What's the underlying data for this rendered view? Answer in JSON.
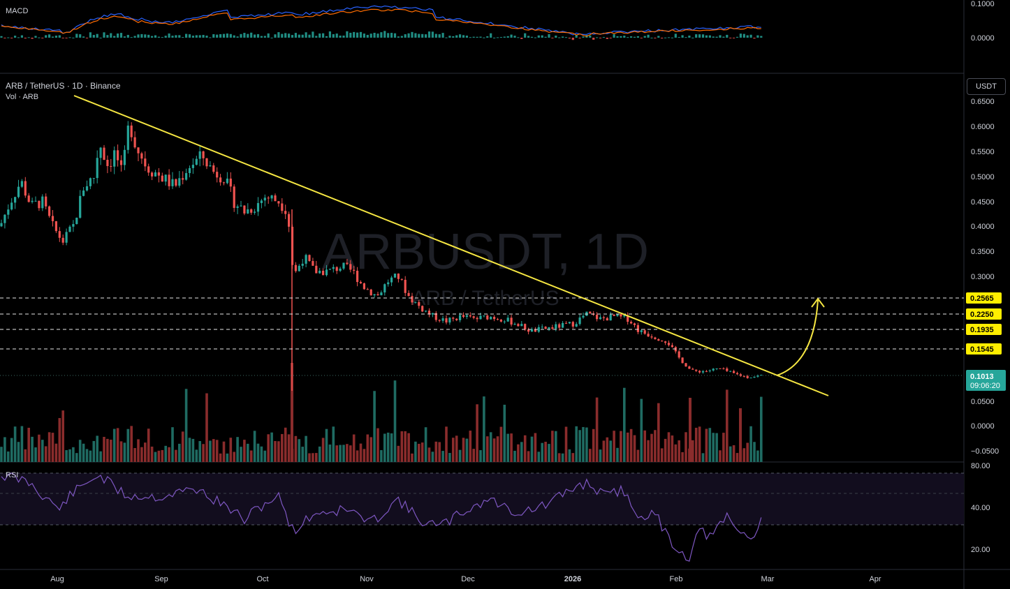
{
  "macd": {
    "title": "MACD",
    "ticks": [
      "0.1000",
      "0.0000"
    ]
  },
  "header": {
    "symbol_line": "ARB / TetherUS · 1D · Binance",
    "volume_line": "Vol · ARB"
  },
  "unit": "USDT",
  "watermark": {
    "main": "ARBUSDT, 1D",
    "sub": "ARB / TetherUS"
  },
  "price_axis": [
    "0.6500",
    "0.6000",
    "0.5500",
    "0.5000",
    "0.4500",
    "0.4000",
    "0.3500",
    "0.3000",
    "0.0500",
    "0.0000",
    "−0.0500"
  ],
  "levels": [
    {
      "label": "0.2565",
      "price": 0.2565
    },
    {
      "label": "0.2250",
      "price": 0.225
    },
    {
      "label": "0.1935",
      "price": 0.1935
    },
    {
      "label": "0.1545",
      "price": 0.1545
    }
  ],
  "current": {
    "price": "0.1013",
    "countdown": "09:06:20"
  },
  "rsi": {
    "title": "RSI",
    "ticks": [
      "80.00",
      "40.00",
      "20.00"
    ]
  },
  "dates": [
    "Aug",
    "Sep",
    "Oct",
    "Nov",
    "Dec",
    "2026",
    "Feb",
    "Mar",
    "Apr"
  ],
  "colors": {
    "up": "#26a69a",
    "down": "#ef5350",
    "trendline": "#f5e642",
    "level_box": "#ffee00",
    "current_box": "#26a69a",
    "rsi": "#7e57c2",
    "macd": "#2962ff",
    "signal": "#ff6d00"
  },
  "chart_data": {
    "type": "candlestick",
    "symbol": "ARBUSDT",
    "interval": "1D",
    "exchange": "Binance",
    "quote": "USDT",
    "key_closes": [
      {
        "date": "Aug",
        "price": 0.4
      },
      {
        "date": "Aug-late",
        "price": 0.61
      },
      {
        "date": "Sep",
        "price": 0.52
      },
      {
        "date": "Sep-mid",
        "price": 0.55
      },
      {
        "date": "Oct",
        "price": 0.44
      },
      {
        "date": "Oct-crash",
        "price": 0.3
      },
      {
        "date": "Nov",
        "price": 0.3
      },
      {
        "date": "Dec",
        "price": 0.21
      },
      {
        "date": "2026",
        "price": 0.215
      },
      {
        "date": "Feb",
        "price": 0.12
      },
      {
        "date": "Mar",
        "price": 0.1013
      }
    ],
    "horizontal_levels": [
      0.2565,
      0.225,
      0.1935,
      0.1545
    ],
    "trendline": [
      {
        "date": "Aug",
        "price": 0.665
      },
      {
        "date": "Mar-mid",
        "price": 0.062
      }
    ],
    "current_price": 0.1013,
    "rsi_range": [
      20,
      80
    ]
  }
}
